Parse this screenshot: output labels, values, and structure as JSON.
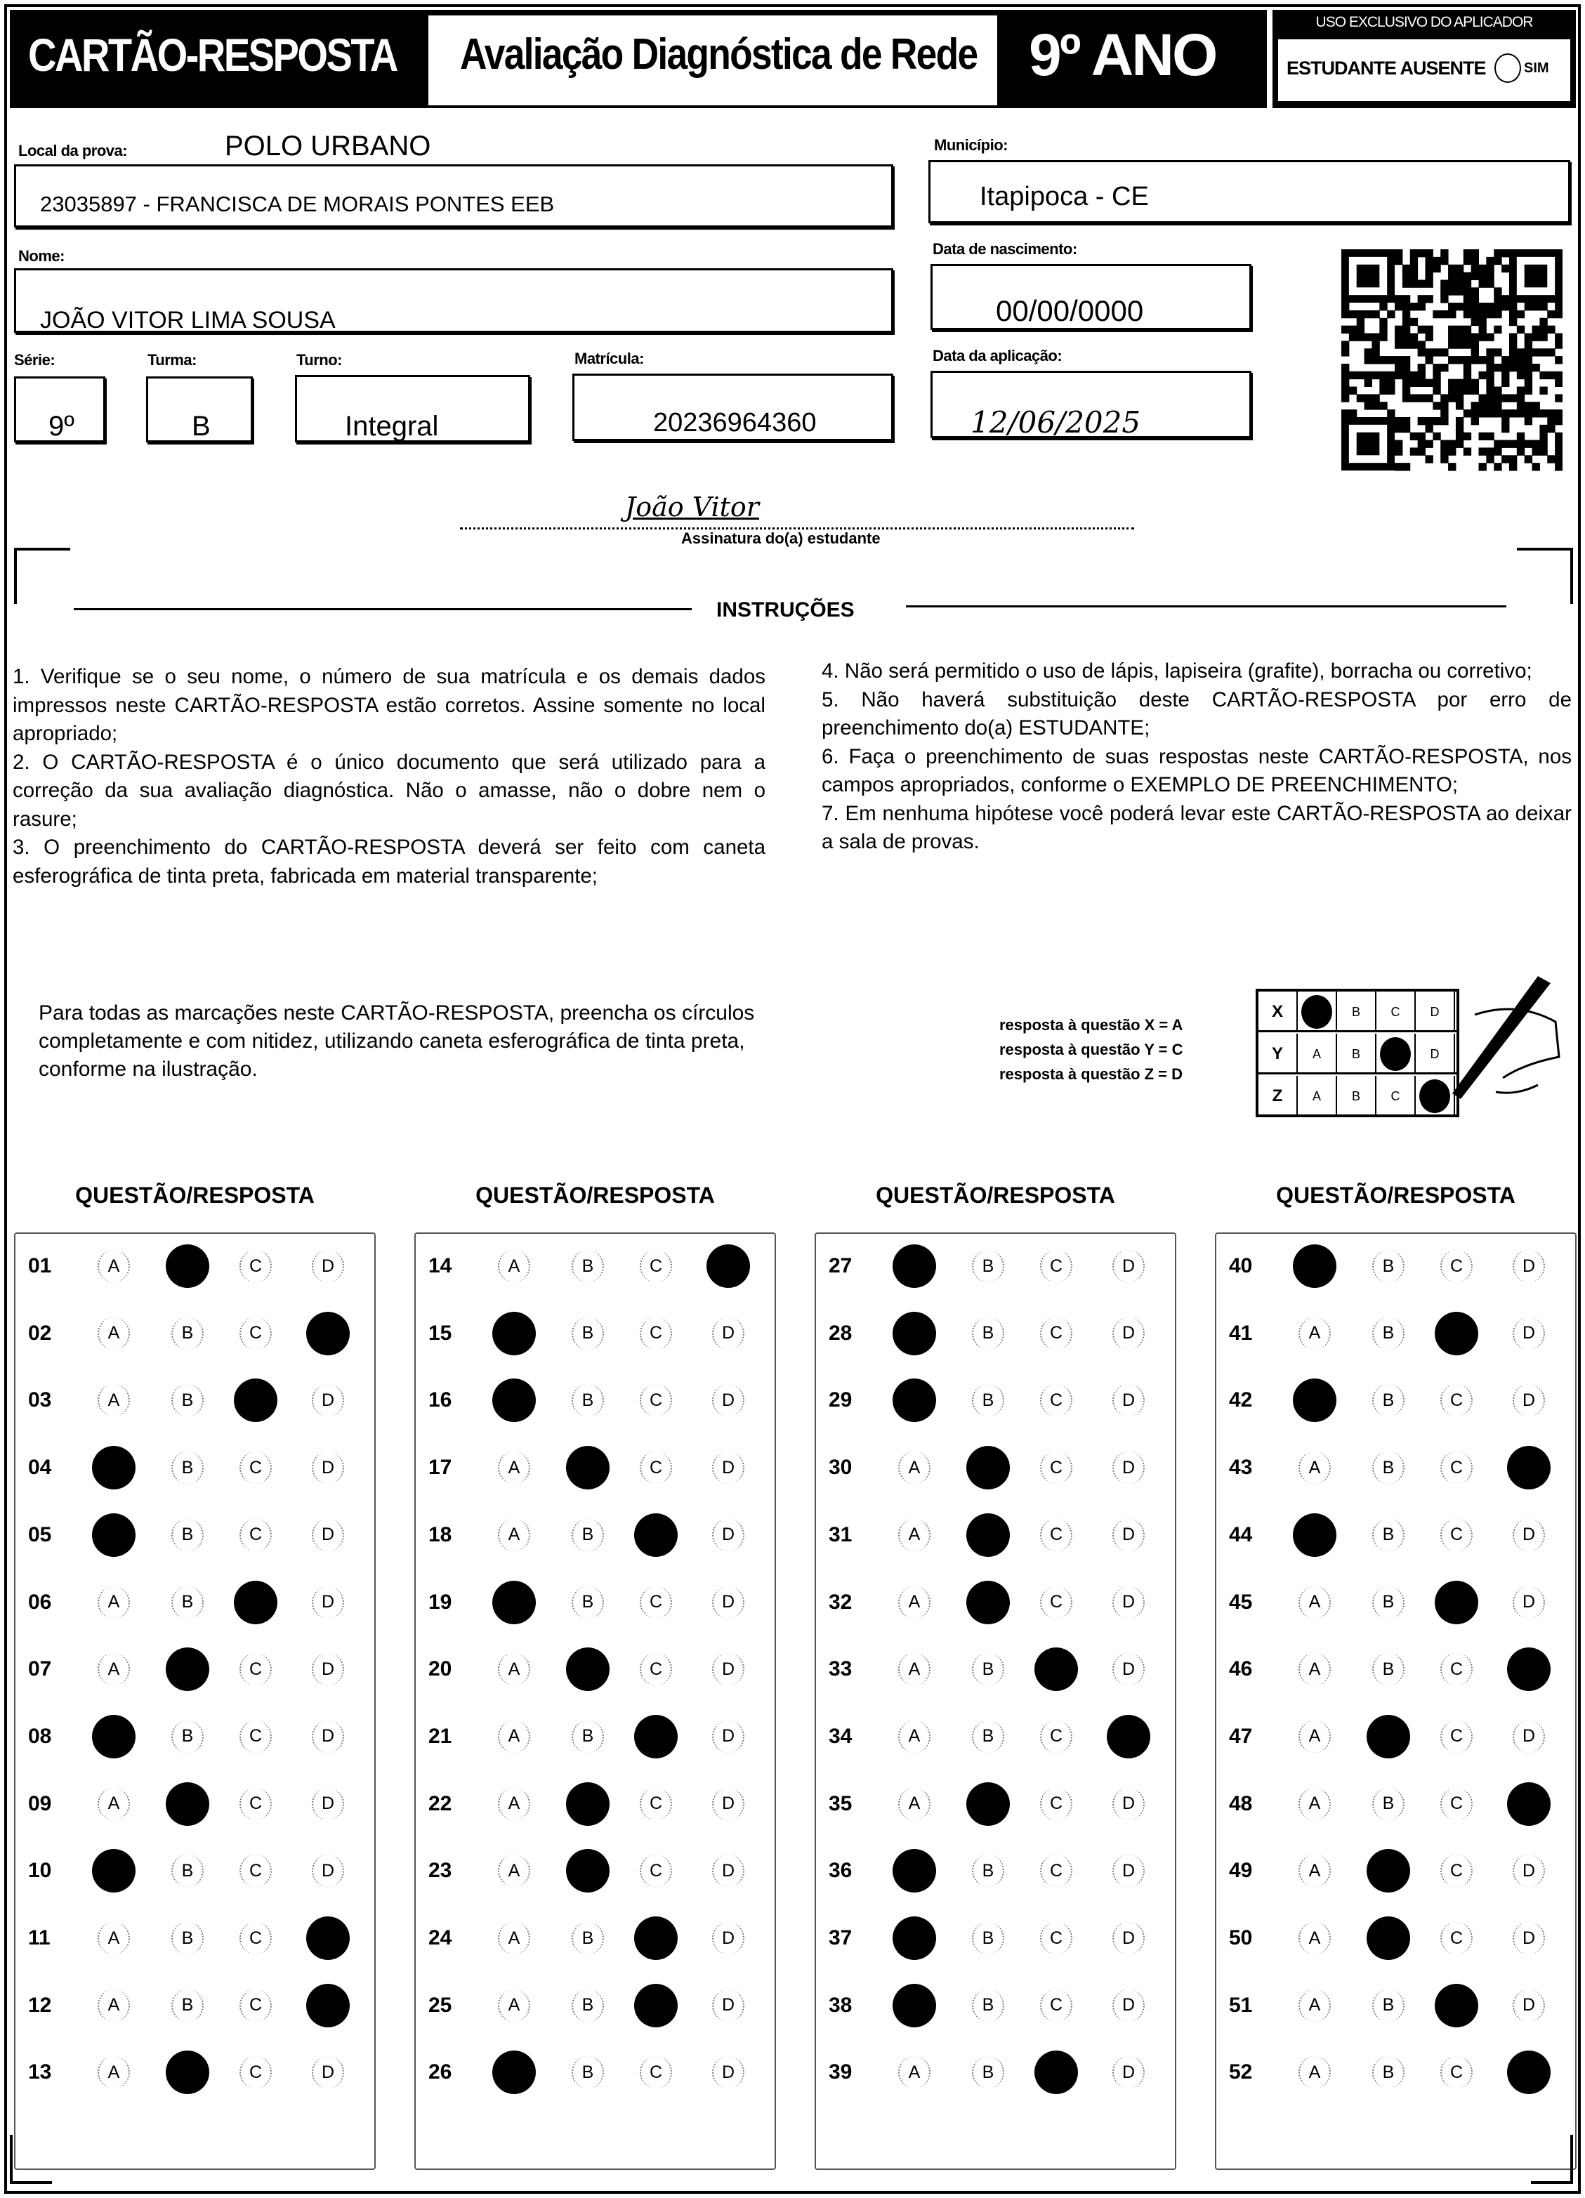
{
  "header": {
    "title": "CARTÃO-RESPOSTA",
    "subtitle": "Avaliação Diagnóstica de Rede",
    "grade": "9º ANO",
    "applicator_title": "USO EXCLUSIVO DO APLICADOR",
    "absent_label": "ESTUDANTE AUSENTE",
    "absent_option": "SIM"
  },
  "fields": {
    "local_label": "Local da prova:",
    "local_value": "POLO URBANO",
    "school": "23035897 - FRANCISCA DE MORAIS PONTES EEB",
    "municipio_label": "Município:",
    "municipio": "Itapipoca - CE",
    "nome_label": "Nome:",
    "nome": "JOÃO VITOR LIMA SOUSA",
    "nasc_label": "Data de nascimento:",
    "nasc": "00/00/0000",
    "serie_label": "Série:",
    "serie": "9º",
    "turma_label": "Turma:",
    "turma": "B",
    "turno_label": "Turno:",
    "turno": "Integral",
    "matricula_label": "Matrícula:",
    "matricula": "20236964360",
    "aplicacao_label": "Data da aplicação:",
    "aplicacao": "12/06/2025"
  },
  "signature": {
    "handwritten": "João Vitor",
    "label": "Assinatura do(a) estudante"
  },
  "instructions": {
    "title": "INSTRUÇÕES",
    "left": [
      "1. Verifique se o seu nome, o número de sua matrícula e os demais dados impressos neste CARTÃO-RESPOSTA estão corretos. Assine somente no local apropriado;",
      "2. O CARTÃO-RESPOSTA é o único documento que será utilizado para a correção da sua avaliação diagnóstica. Não o amasse, não o dobre nem o rasure;",
      "3. O preenchimento do CARTÃO-RESPOSTA deverá ser feito com caneta esferográfica de tinta preta, fabricada em material transparente;"
    ],
    "right": [
      "4. Não será permitido o uso de lápis, lapiseira (grafite), borracha ou corretivo;",
      "5. Não haverá substituição deste CARTÃO-RESPOSTA por erro de preenchimento do(a) ESTUDANTE;",
      "6. Faça o preenchimento de suas respostas neste CARTÃO-RESPOSTA, nos campos apropriados, conforme o EXEMPLO DE PREENCHIMENTO;",
      "7. Em nenhuma hipótese você poderá levar este CARTÃO-RESPOSTA ao deixar a sala de provas."
    ]
  },
  "fill_instruction": "Para todas as marcações neste CARTÃO-RESPOSTA, preencha os círculos completamente e com nitidez, utilizando caneta esferográfica de tinta preta, conforme na ilustração.",
  "example": {
    "lines": [
      "resposta à questão X = A",
      "resposta à questão Y = C",
      "resposta à questão Z = D"
    ],
    "rows": [
      {
        "label": "X",
        "answer": "A"
      },
      {
        "label": "Y",
        "answer": "C"
      },
      {
        "label": "Z",
        "answer": "D"
      }
    ]
  },
  "column_header": "QUESTÃO/RESPOSTA",
  "options": [
    "A",
    "B",
    "C",
    "D"
  ],
  "answers": [
    "B",
    "D",
    "C",
    "A",
    "A",
    "C",
    "B",
    "A",
    "B",
    "A",
    "D",
    "D",
    "B",
    "D",
    "A",
    "A",
    "B",
    "C",
    "A",
    "B",
    "C",
    "B",
    "B",
    "C",
    "C",
    "A",
    "A",
    "A",
    "A",
    "B",
    "B",
    "B",
    "C",
    "D",
    "B",
    "A",
    "A",
    "A",
    "C",
    "A",
    "C",
    "A",
    "D",
    "A",
    "C",
    "D",
    "B",
    "D",
    "B",
    "B",
    "C",
    "D"
  ]
}
